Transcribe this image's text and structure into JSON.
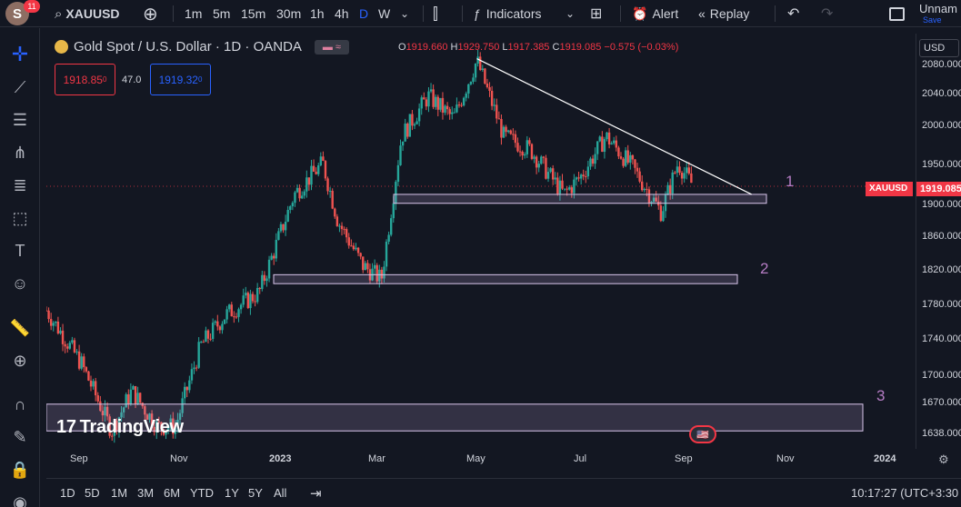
{
  "topbar": {
    "avatar_letter": "S",
    "notifications": "11",
    "symbol": "XAUUSD",
    "timeframes": [
      "1m",
      "5m",
      "15m",
      "30m",
      "1h",
      "4h",
      "D",
      "W"
    ],
    "active_timeframe": "D",
    "indicators_label": "Indicators",
    "alert_label": "Alert",
    "replay_label": "Replay",
    "layout_name": "Unnam",
    "save_label": "Save"
  },
  "legend": {
    "title": "Gold Spot / U.S. Dollar · 1D · OANDA",
    "open_label": "O",
    "open": "1919.660",
    "high_label": "H",
    "high": "1929.750",
    "low_label": "L",
    "low": "1917.385",
    "close_label": "C",
    "close": "1919.085",
    "change": "−0.575 (−0.03%)",
    "sell_price": "1918.85",
    "sell_sup": "0",
    "spread": "47.0",
    "buy_price": "1919.32",
    "buy_sup": "0"
  },
  "scale": {
    "currency": "USD",
    "prices": [
      "2080.000",
      "2040.000",
      "2000.000",
      "1950.000",
      "1900.000",
      "1860.000",
      "1820.000",
      "1780.000",
      "1740.000",
      "1700.000",
      "1670.000",
      "1638.000"
    ],
    "symbol_tag": "XAUUSD",
    "last_price": "1919.085"
  },
  "time_axis": {
    "labels": [
      "Sep",
      "Nov",
      "2023",
      "Mar",
      "May",
      "Jul",
      "Sep",
      "Nov",
      "2024"
    ]
  },
  "zones": {
    "label1": "1",
    "label2": "2",
    "label3": "3"
  },
  "watermark": "TradingView",
  "bottombar": {
    "ranges": [
      "1D",
      "5D",
      "1M",
      "3M",
      "6M",
      "YTD",
      "1Y",
      "5Y",
      "All"
    ],
    "clock": "10:17:27 (UTC+3:30"
  },
  "chart_data": {
    "type": "candlestick",
    "title": "Gold Spot / U.S. Dollar · 1D · OANDA",
    "x": [
      "Aug-22",
      "Sep-22",
      "Oct-22",
      "Nov-22",
      "Dec-22",
      "Jan-23",
      "Feb-23",
      "Mar-23",
      "Apr-23",
      "May-23",
      "Jun-23",
      "Jul-23",
      "Aug-23",
      "Sep-23"
    ],
    "close_path": [
      [
        "2022-08-20",
        1780
      ],
      [
        "2022-09-10",
        1720
      ],
      [
        "2022-09-28",
        1645
      ],
      [
        "2022-10-10",
        1690
      ],
      [
        "2022-10-25",
        1650
      ],
      [
        "2022-11-05",
        1650
      ],
      [
        "2022-11-20",
        1740
      ],
      [
        "2022-12-05",
        1775
      ],
      [
        "2022-12-25",
        1800
      ],
      [
        "2023-01-15",
        1910
      ],
      [
        "2023-02-01",
        1945
      ],
      [
        "2023-02-10",
        1880
      ],
      [
        "2023-02-25",
        1830
      ],
      [
        "2023-03-08",
        1815
      ],
      [
        "2023-03-20",
        1975
      ],
      [
        "2023-04-05",
        2020
      ],
      [
        "2023-04-20",
        1995
      ],
      [
        "2023-05-04",
        2060
      ],
      [
        "2023-05-20",
        1975
      ],
      [
        "2023-06-05",
        1960
      ],
      [
        "2023-06-25",
        1910
      ],
      [
        "2023-07-05",
        1930
      ],
      [
        "2023-07-20",
        1975
      ],
      [
        "2023-08-05",
        1940
      ],
      [
        "2023-08-22",
        1890
      ],
      [
        "2023-09-01",
        1945
      ],
      [
        "2023-09-10",
        1920
      ]
    ],
    "horizontal_zones": [
      {
        "label": "1",
        "y_range": [
          1900,
          1910
        ]
      },
      {
        "label": "2",
        "y_range": [
          1810,
          1820
        ]
      },
      {
        "label": "3",
        "y_range": [
          1645,
          1675
        ]
      }
    ],
    "trendline": {
      "from": [
        "2023-05-04",
        2062
      ],
      "to": [
        "2023-10-15",
        1910
      ]
    },
    "ylim": [
      1630,
      2085
    ],
    "last_price": 1919.085,
    "up_color": "#26a69a",
    "down_color": "#ef5350"
  }
}
